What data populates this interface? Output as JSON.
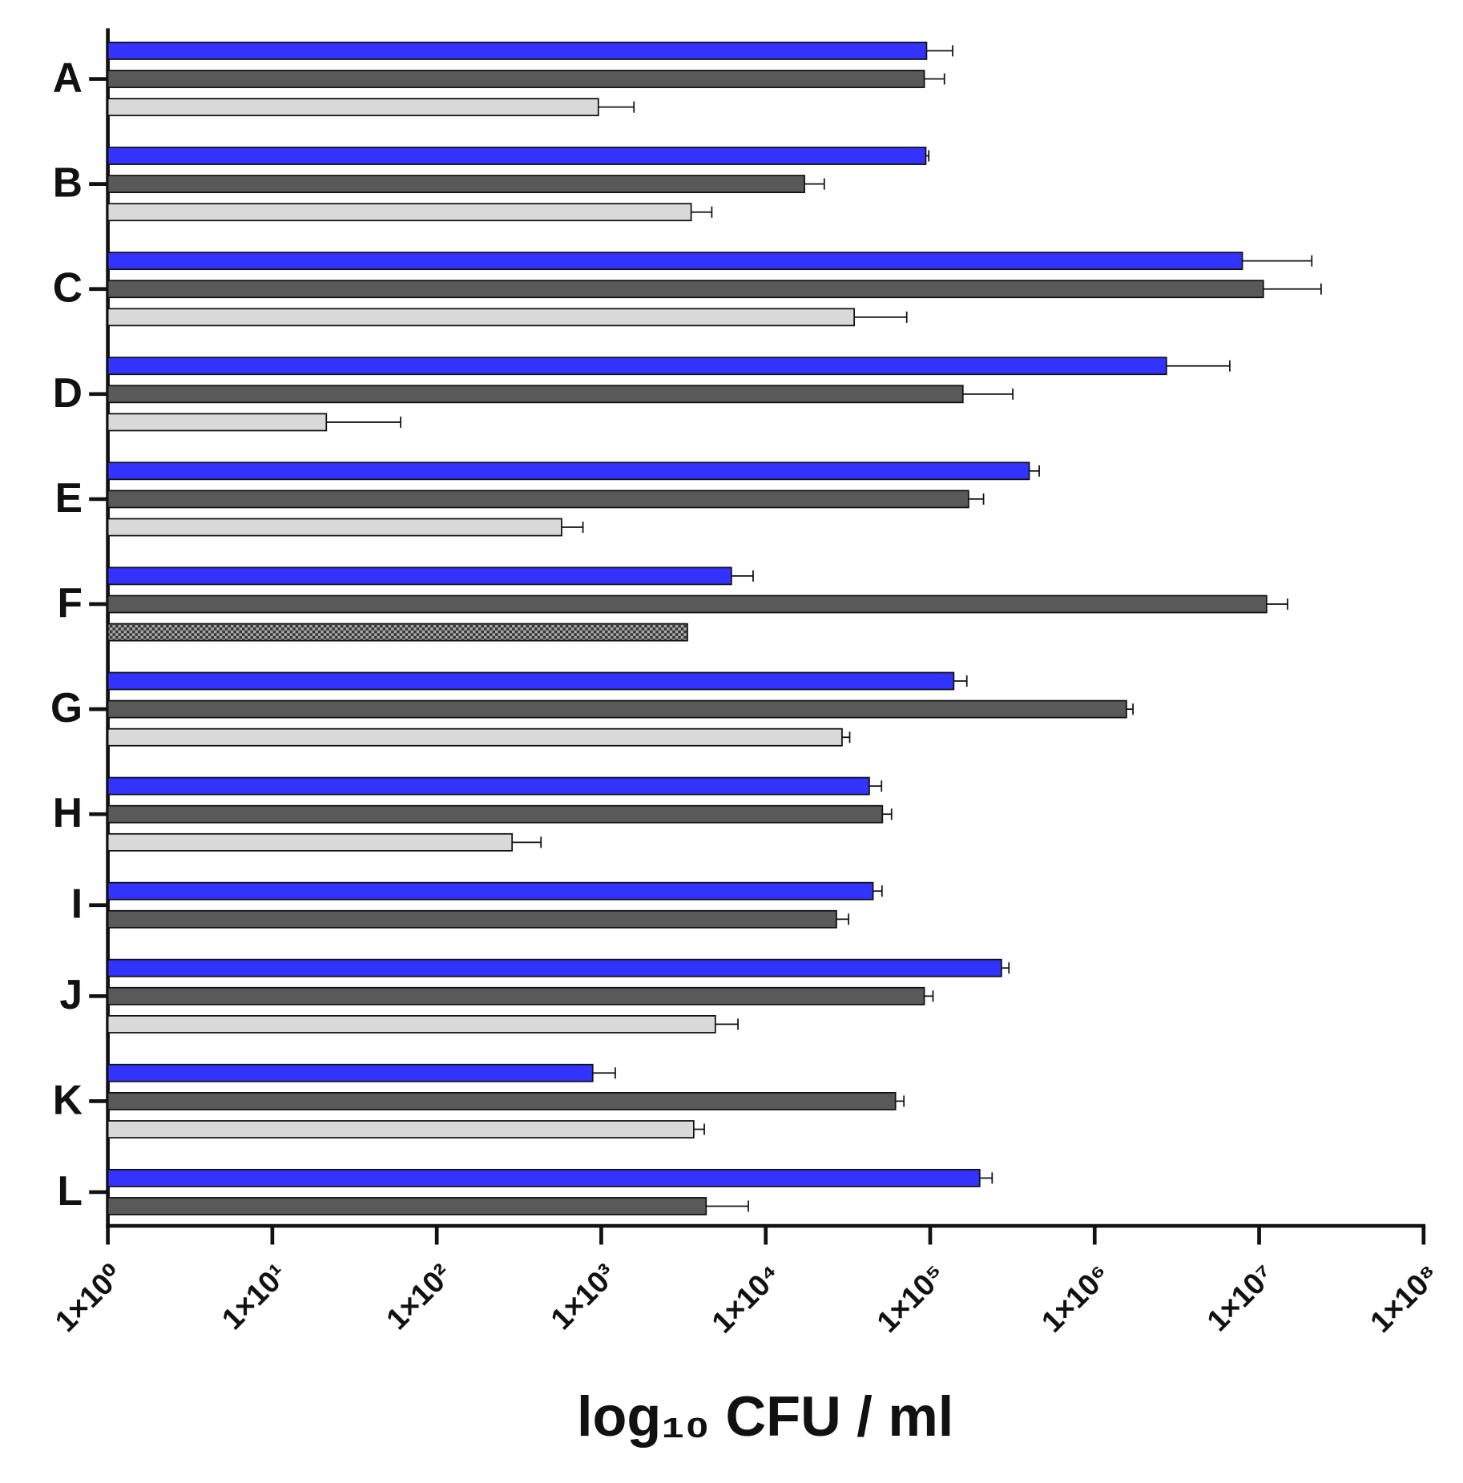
{
  "chart_data": {
    "type": "bar",
    "orientation": "horizontal",
    "xlabel": "log₁₀ CFU / ml",
    "xscale": "log",
    "xlim": [
      1,
      100000000
    ],
    "xticks": [
      {
        "value": 1,
        "label": "1×10⁰"
      },
      {
        "value": 10,
        "label": "1×10¹"
      },
      {
        "value": 100,
        "label": "1×10²"
      },
      {
        "value": 1000,
        "label": "1×10³"
      },
      {
        "value": 10000,
        "label": "1×10⁴"
      },
      {
        "value": 100000,
        "label": "1×10⁵"
      },
      {
        "value": 1000000,
        "label": "1×10⁶"
      },
      {
        "value": 10000000,
        "label": "1×10⁷"
      },
      {
        "value": 100000000,
        "label": "1×10⁸"
      }
    ],
    "categories": [
      "A",
      "B",
      "C",
      "D",
      "E",
      "F",
      "G",
      "H",
      "I",
      "J",
      "K",
      "L"
    ],
    "series": [
      {
        "color": "#3333ff",
        "values": [
          95000,
          94000,
          7900000,
          2730000,
          400000,
          6180,
          139000,
          42600,
          44900,
          271000,
          887,
          200000
        ],
        "errors": [
          42000,
          4000,
          13000000,
          3900000,
          60000,
          2200,
          28000,
          8000,
          6000,
          30000,
          330,
          38000
        ]
      },
      {
        "color": "#595959",
        "values": [
          92000,
          17200,
          10600000,
          158000,
          171000,
          11100000,
          1560000,
          51200,
          26900,
          92000,
          61500,
          4340
        ],
        "errors": [
          30000,
          5500,
          13200000,
          160000,
          40000,
          3800000,
          150000,
          7000,
          5000,
          12000,
          7700,
          3500
        ]
      },
      {
        "color": "#d9d9d9",
        "values": [
          960,
          3520,
          34500,
          21.3,
          574,
          3340,
          29100,
          287,
          null,
          4940,
          3650,
          null
        ],
        "errors": [
          620,
          1180,
          37500,
          39,
          200,
          null,
          3300,
          143,
          null,
          1840,
          580,
          null
        ],
        "hatched": [
          false,
          false,
          false,
          false,
          false,
          true,
          false,
          false,
          false,
          false,
          false,
          false
        ]
      }
    ]
  }
}
